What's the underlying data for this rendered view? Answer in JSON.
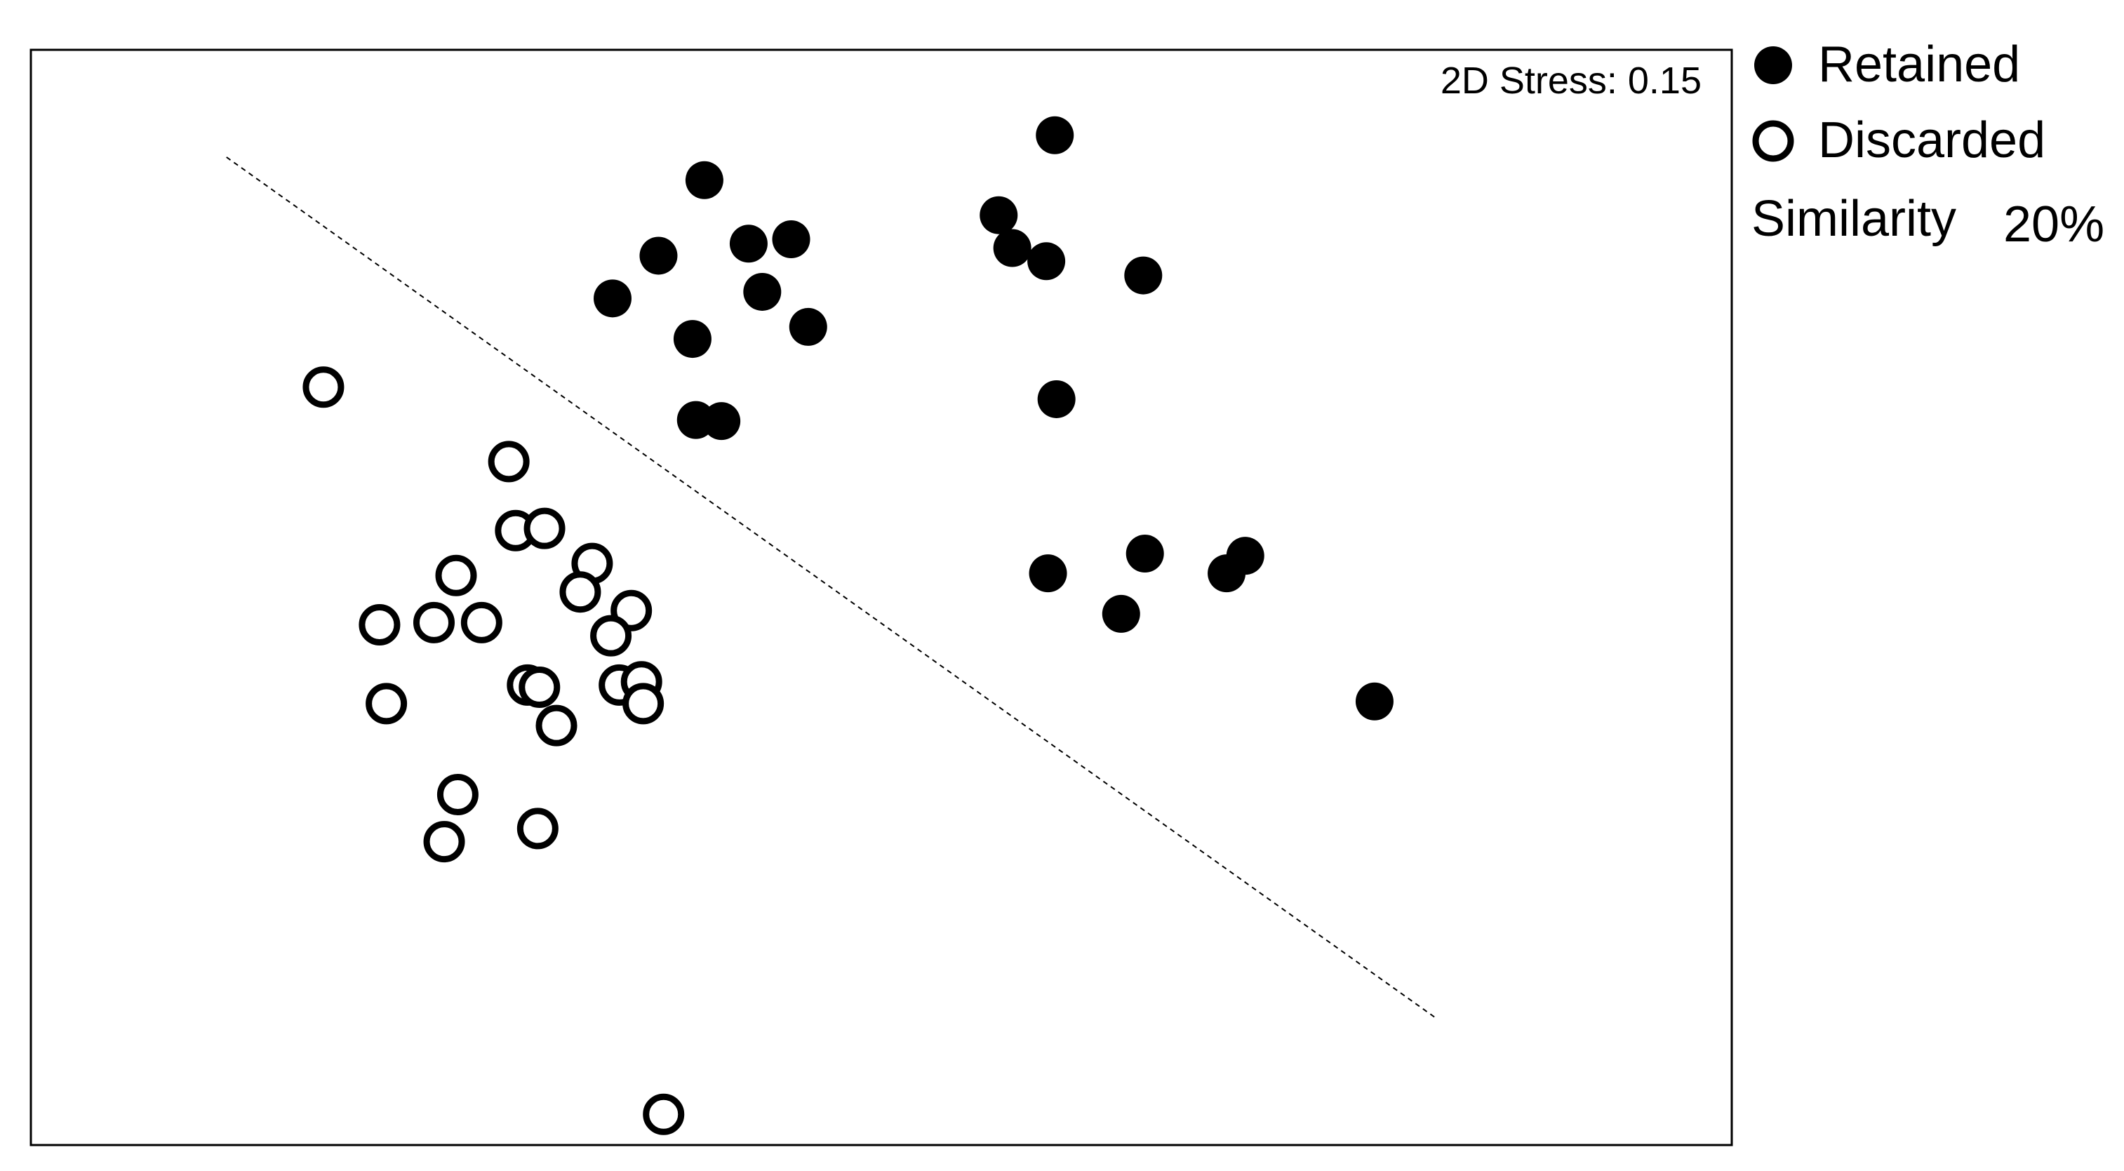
{
  "chart_data": {
    "type": "scatter",
    "annotation": "2D Stress: 0.15",
    "xlim": [
      0,
      1
    ],
    "ylim": [
      0,
      1
    ],
    "grid": false,
    "legend_position": "outside-right",
    "series": [
      {
        "name": "Retained",
        "marker": "filled-circle",
        "points": [
          [
            0.396,
            0.881
          ],
          [
            0.369,
            0.812
          ],
          [
            0.422,
            0.823
          ],
          [
            0.447,
            0.827
          ],
          [
            0.43,
            0.779
          ],
          [
            0.342,
            0.773
          ],
          [
            0.457,
            0.747
          ],
          [
            0.389,
            0.736
          ],
          [
            0.391,
            0.662
          ],
          [
            0.406,
            0.661
          ],
          [
            0.602,
            0.922
          ],
          [
            0.569,
            0.849
          ],
          [
            0.577,
            0.819
          ],
          [
            0.597,
            0.807
          ],
          [
            0.654,
            0.794
          ],
          [
            0.603,
            0.681
          ],
          [
            0.598,
            0.522
          ],
          [
            0.655,
            0.54
          ],
          [
            0.641,
            0.485
          ],
          [
            0.703,
            0.522
          ],
          [
            0.714,
            0.538
          ],
          [
            0.79,
            0.405
          ]
        ]
      },
      {
        "name": "Discarded",
        "marker": "open-circle",
        "points": [
          [
            0.172,
            0.692
          ],
          [
            0.281,
            0.624
          ],
          [
            0.285,
            0.561
          ],
          [
            0.302,
            0.563
          ],
          [
            0.33,
            0.531
          ],
          [
            0.323,
            0.505
          ],
          [
            0.25,
            0.52
          ],
          [
            0.353,
            0.488
          ],
          [
            0.341,
            0.465
          ],
          [
            0.205,
            0.475
          ],
          [
            0.237,
            0.477
          ],
          [
            0.265,
            0.477
          ],
          [
            0.292,
            0.42
          ],
          [
            0.299,
            0.418
          ],
          [
            0.346,
            0.42
          ],
          [
            0.359,
            0.423
          ],
          [
            0.36,
            0.403
          ],
          [
            0.309,
            0.383
          ],
          [
            0.209,
            0.403
          ],
          [
            0.251,
            0.32
          ],
          [
            0.243,
            0.277
          ],
          [
            0.298,
            0.289
          ],
          [
            0.372,
            0.028
          ]
        ]
      }
    ],
    "separator_line": [
      [
        0.115,
        0.902
      ],
      [
        0.826,
        0.116
      ]
    ]
  },
  "legend": {
    "items": [
      {
        "label": "Retained",
        "marker": "filled-circle"
      },
      {
        "label": "Discarded",
        "marker": "open-circle"
      }
    ],
    "similarity_label": "Similarity",
    "similarity_value": "20%"
  },
  "colors": {
    "marker": "#000000",
    "background": "#ffffff",
    "frame": "#000000"
  }
}
